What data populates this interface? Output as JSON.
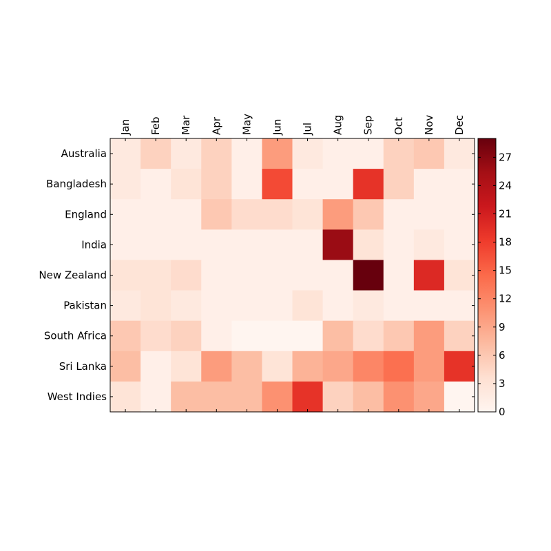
{
  "chart_data": {
    "type": "heatmap",
    "x_categories": [
      "Jan",
      "Feb",
      "Mar",
      "Apr",
      "May",
      "Jun",
      "Jul",
      "Aug",
      "Sep",
      "Oct",
      "Nov",
      "Dec"
    ],
    "y_categories": [
      "Australia",
      "Bangladesh",
      "England",
      "India",
      "New Zealand",
      "Pakistan",
      "South Africa",
      "Sri Lanka",
      "West Indies"
    ],
    "values": [
      [
        2,
        5,
        2,
        5,
        1,
        10,
        2,
        1,
        1,
        5,
        6,
        2
      ],
      [
        2,
        1,
        3,
        5,
        1,
        17,
        1,
        1,
        19,
        5,
        1,
        1
      ],
      [
        1,
        1,
        1,
        6,
        4,
        4,
        3,
        10,
        6,
        1,
        1,
        1
      ],
      [
        1,
        1,
        1,
        1,
        1,
        1,
        1,
        26,
        3,
        1,
        2,
        1
      ],
      [
        3,
        3,
        4,
        1,
        1,
        1,
        1,
        1,
        29,
        1,
        20,
        3
      ],
      [
        2,
        3,
        2,
        1,
        1,
        1,
        3,
        1,
        2,
        1,
        1,
        1
      ],
      [
        6,
        4,
        5,
        1,
        0,
        0,
        0,
        7,
        4,
        6,
        10,
        5
      ],
      [
        7,
        1,
        3,
        10,
        7,
        3,
        8,
        9,
        12,
        14,
        10,
        19
      ],
      [
        3,
        1,
        7,
        7,
        7,
        11,
        19,
        5,
        7,
        11,
        9,
        0
      ]
    ],
    "colorbar": {
      "min": 0,
      "max": 29,
      "ticks": [
        0,
        3,
        6,
        9,
        12,
        15,
        18,
        21,
        24,
        27
      ]
    },
    "colormap": "Reds",
    "x_axis_position": "top",
    "grid": false
  }
}
